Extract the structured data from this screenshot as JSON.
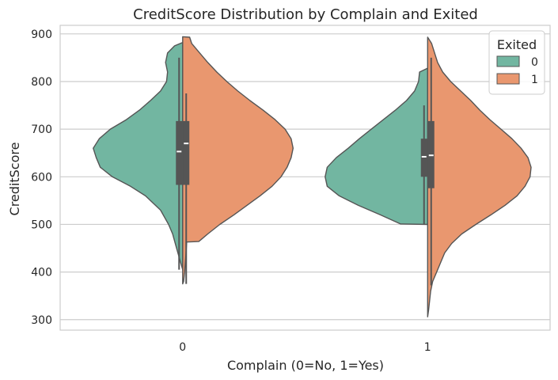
{
  "chart_data": {
    "type": "violin",
    "title": "CreditScore Distribution by Complain and Exited",
    "xlabel": "Complain (0=No, 1=Yes)",
    "ylabel": "CreditScore",
    "categories": [
      "0",
      "1"
    ],
    "ylim": [
      278,
      918
    ],
    "yticks": [
      300,
      400,
      500,
      600,
      700,
      800,
      900
    ],
    "grid": true,
    "legend": {
      "title": "Exited",
      "placement": "top-right"
    },
    "series": [
      {
        "name": "0",
        "color": "#72b6a1",
        "violins": [
          {
            "category": "0",
            "range": [
              405,
              882
            ],
            "density": [
              [
                405,
                0.0
              ],
              [
                420,
                0.02
              ],
              [
                450,
                0.06
              ],
              [
                480,
                0.1
              ],
              [
                500,
                0.14
              ],
              [
                530,
                0.22
              ],
              [
                560,
                0.37
              ],
              [
                580,
                0.52
              ],
              [
                600,
                0.7
              ],
              [
                620,
                0.82
              ],
              [
                640,
                0.86
              ],
              [
                660,
                0.89
              ],
              [
                680,
                0.83
              ],
              [
                700,
                0.72
              ],
              [
                720,
                0.56
              ],
              [
                740,
                0.43
              ],
              [
                760,
                0.32
              ],
              [
                780,
                0.22
              ],
              [
                800,
                0.16
              ],
              [
                820,
                0.15
              ],
              [
                840,
                0.17
              ],
              [
                860,
                0.15
              ],
              [
                875,
                0.08
              ],
              [
                882,
                0.0
              ]
            ],
            "q1": 583,
            "median": 653,
            "q3": 717,
            "whisker": [
              405,
              850
            ]
          },
          {
            "category": "1",
            "range": [
              500,
              828
            ],
            "density": [
              [
                500,
                0.0
              ],
              [
                501,
                0.27
              ],
              [
                520,
                0.47
              ],
              [
                540,
                0.69
              ],
              [
                560,
                0.88
              ],
              [
                580,
                1.0
              ],
              [
                600,
                1.02
              ],
              [
                620,
                1.0
              ],
              [
                640,
                0.91
              ],
              [
                660,
                0.79
              ],
              [
                680,
                0.68
              ],
              [
                700,
                0.56
              ],
              [
                720,
                0.44
              ],
              [
                740,
                0.32
              ],
              [
                760,
                0.21
              ],
              [
                780,
                0.13
              ],
              [
                800,
                0.09
              ],
              [
                820,
                0.08
              ],
              [
                828,
                0.0
              ]
            ],
            "q1": 600,
            "median": 642,
            "q3": 680,
            "whisker": [
              500,
              750
            ]
          }
        ]
      },
      {
        "name": "1",
        "color": "#e9976f",
        "violins": [
          {
            "category": "0",
            "range": [
              375,
              893
            ],
            "density": [
              [
                375,
                0.0
              ],
              [
                380,
                0.01
              ],
              [
                400,
                0.02
              ],
              [
                430,
                0.03
              ],
              [
                460,
                0.04
              ],
              [
                463,
                0.04
              ],
              [
                464,
                0.16
              ],
              [
                480,
                0.25
              ],
              [
                500,
                0.37
              ],
              [
                520,
                0.51
              ],
              [
                540,
                0.64
              ],
              [
                560,
                0.77
              ],
              [
                580,
                0.89
              ],
              [
                600,
                0.98
              ],
              [
                620,
                1.04
              ],
              [
                640,
                1.08
              ],
              [
                660,
                1.1
              ],
              [
                680,
                1.08
              ],
              [
                700,
                1.02
              ],
              [
                720,
                0.92
              ],
              [
                740,
                0.8
              ],
              [
                760,
                0.67
              ],
              [
                780,
                0.55
              ],
              [
                800,
                0.44
              ],
              [
                820,
                0.34
              ],
              [
                840,
                0.25
              ],
              [
                860,
                0.17
              ],
              [
                880,
                0.09
              ],
              [
                893,
                0.07
              ],
              [
                894,
                0.0
              ]
            ],
            "q1": 583,
            "median": 670,
            "q3": 717,
            "whisker": [
              375,
              775
            ]
          },
          {
            "category": "1",
            "range": [
              306,
              893
            ],
            "density": [
              [
                306,
                0.0
              ],
              [
                320,
                0.01
              ],
              [
                340,
                0.02
              ],
              [
                360,
                0.03
              ],
              [
                380,
                0.05
              ],
              [
                400,
                0.09
              ],
              [
                420,
                0.13
              ],
              [
                440,
                0.17
              ],
              [
                460,
                0.24
              ],
              [
                480,
                0.34
              ],
              [
                500,
                0.48
              ],
              [
                520,
                0.63
              ],
              [
                540,
                0.77
              ],
              [
                560,
                0.89
              ],
              [
                580,
                0.97
              ],
              [
                600,
                1.02
              ],
              [
                620,
                1.03
              ],
              [
                640,
                1.0
              ],
              [
                660,
                0.93
              ],
              [
                680,
                0.84
              ],
              [
                700,
                0.73
              ],
              [
                720,
                0.62
              ],
              [
                740,
                0.52
              ],
              [
                760,
                0.43
              ],
              [
                780,
                0.33
              ],
              [
                800,
                0.23
              ],
              [
                820,
                0.15
              ],
              [
                840,
                0.1
              ],
              [
                860,
                0.07
              ],
              [
                880,
                0.04
              ],
              [
                893,
                0.0
              ]
            ],
            "q1": 576,
            "median": 645,
            "q3": 717,
            "whisker": [
              372,
              850
            ]
          }
        ]
      }
    ]
  }
}
